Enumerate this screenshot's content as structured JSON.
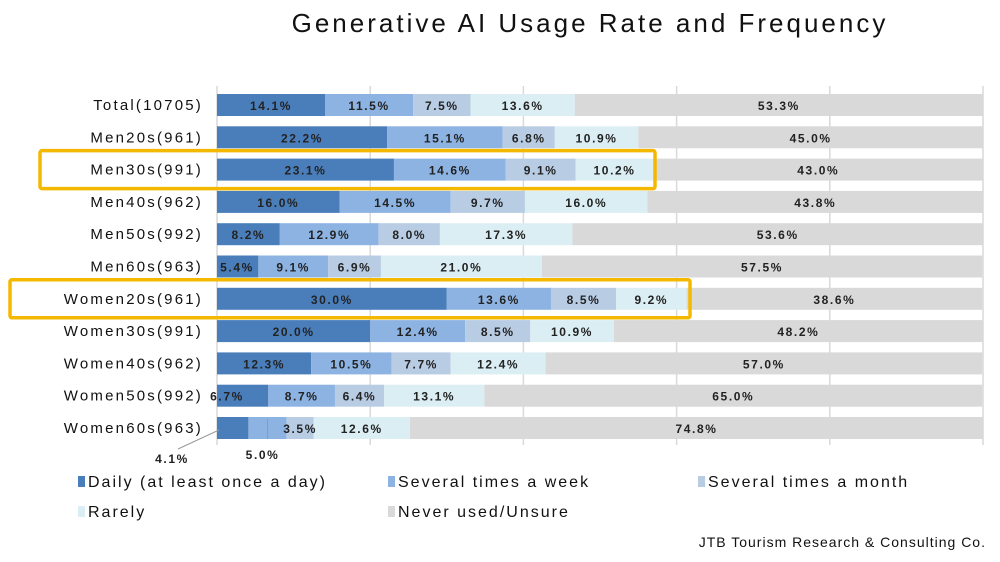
{
  "chart_data": {
    "type": "bar",
    "orientation": "horizontal",
    "stacked": true,
    "title": "Generative AI Usage Rate and Frequency",
    "xlabel": "",
    "ylabel": "",
    "xlim": [
      0,
      100
    ],
    "grid": true,
    "legend_position": "bottom",
    "categories": [
      "Total(10705)",
      "Men20s(961)",
      "Men30s(991)",
      "Men40s(962)",
      "Men50s(992)",
      "Men60s(963)",
      "Women20s(961)",
      "Women30s(991)",
      "Women40s(962)",
      "Women50s(992)",
      "Women60s(963)"
    ],
    "series": [
      {
        "name": "Daily (at least once a day)",
        "color": "#4a7ebb",
        "values": [
          14.1,
          22.2,
          23.1,
          16.0,
          8.2,
          5.4,
          30.0,
          20.0,
          12.3,
          6.7,
          4.1
        ]
      },
      {
        "name": "Several times a week",
        "color": "#8db3e2",
        "values": [
          11.5,
          15.1,
          14.6,
          14.5,
          12.9,
          9.1,
          13.6,
          12.4,
          10.5,
          8.7,
          5.0
        ]
      },
      {
        "name": "Several times a month",
        "color": "#b8cce4",
        "values": [
          7.5,
          6.8,
          9.1,
          9.7,
          8.0,
          6.9,
          8.5,
          8.5,
          7.7,
          6.4,
          3.5
        ]
      },
      {
        "name": "Rarely",
        "color": "#dbeef4",
        "values": [
          13.6,
          10.9,
          10.2,
          16.0,
          17.3,
          21.0,
          9.2,
          10.9,
          12.4,
          13.1,
          12.6
        ]
      },
      {
        "name": "Never used/Unsure",
        "color": "#d9d9d9",
        "values": [
          53.3,
          45.0,
          43.0,
          43.8,
          53.6,
          57.5,
          38.6,
          48.2,
          57.0,
          65.0,
          74.8
        ]
      }
    ],
    "highlighted_categories": [
      "Men30s(991)",
      "Women20s(961)"
    ],
    "highlight_color": "#f5b800"
  },
  "source": "JTB Tourism Research & Consulting Co."
}
